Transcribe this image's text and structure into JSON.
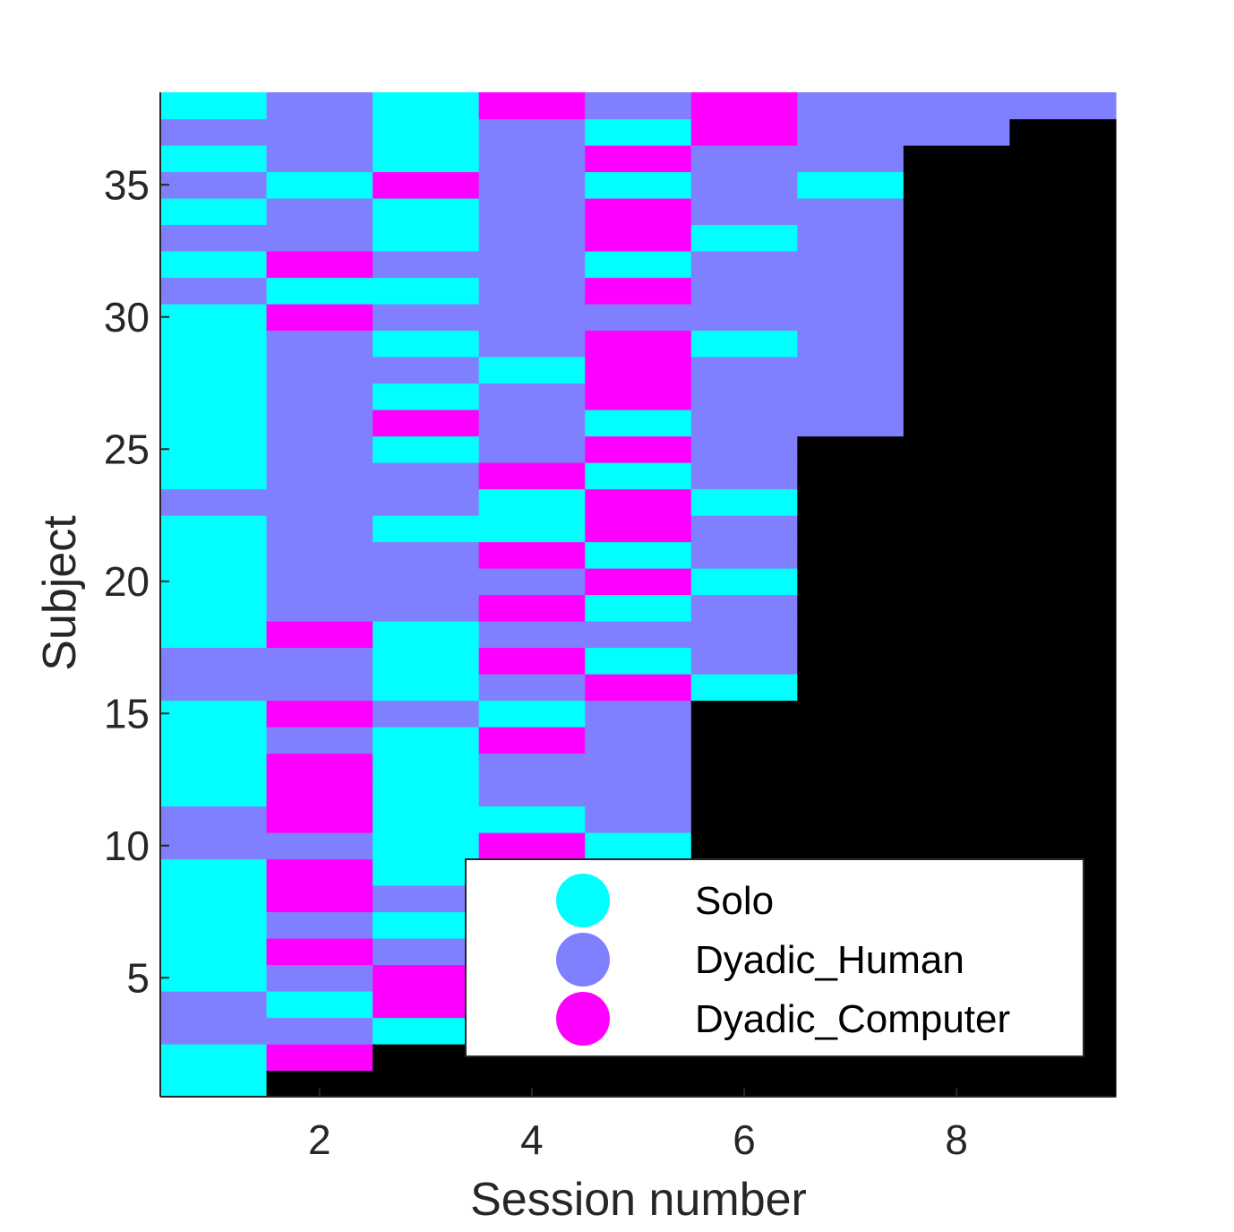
{
  "chart_data": {
    "type": "heatmap",
    "xlabel": "Session number",
    "ylabel": "Subject",
    "x_range": [
      0.5,
      9.5
    ],
    "y_range": [
      0.5,
      38.5
    ],
    "x_ticks": [
      2,
      4,
      6,
      8
    ],
    "y_ticks": [
      5,
      10,
      15,
      20,
      25,
      30,
      35
    ],
    "colors": {
      "0": "#000000",
      "1": "#00FFFF",
      "2": "#8080FF",
      "3": "#FF00FF"
    },
    "legend": {
      "position": "bottom-right",
      "entries": [
        {
          "label": "Solo",
          "code": 1
        },
        {
          "label": "Dyadic_Human",
          "code": 2
        },
        {
          "label": "Dyadic_Computer",
          "code": 3
        }
      ]
    },
    "value_legend": "0 = no session, 1 = Solo, 2 = Dyadic_Human, 3 = Dyadic_Computer",
    "subjects": [
      1,
      2,
      3,
      4,
      5,
      6,
      7,
      8,
      9,
      10,
      11,
      12,
      13,
      14,
      15,
      16,
      17,
      18,
      19,
      20,
      21,
      22,
      23,
      24,
      25,
      26,
      27,
      28,
      29,
      30,
      31,
      32,
      33,
      34,
      35,
      36,
      37,
      38
    ],
    "sessions": [
      1,
      2,
      3,
      4,
      5,
      6,
      7,
      8,
      9
    ],
    "matrix": [
      [
        1,
        0,
        0,
        0,
        0,
        0,
        0,
        0,
        0
      ],
      [
        1,
        3,
        0,
        0,
        0,
        0,
        0,
        0,
        0
      ],
      [
        2,
        2,
        1,
        0,
        0,
        0,
        0,
        0,
        0
      ],
      [
        2,
        1,
        3,
        0,
        0,
        0,
        0,
        0,
        0
      ],
      [
        1,
        2,
        3,
        0,
        0,
        0,
        0,
        0,
        0
      ],
      [
        1,
        3,
        2,
        0,
        0,
        0,
        0,
        0,
        0
      ],
      [
        1,
        2,
        1,
        0,
        0,
        0,
        0,
        0,
        0
      ],
      [
        1,
        3,
        2,
        0,
        0,
        0,
        0,
        0,
        0
      ],
      [
        1,
        3,
        1,
        0,
        0,
        0,
        0,
        0,
        0
      ],
      [
        2,
        2,
        1,
        3,
        1,
        0,
        0,
        0,
        0
      ],
      [
        2,
        3,
        1,
        1,
        2,
        0,
        0,
        0,
        0
      ],
      [
        1,
        3,
        1,
        2,
        2,
        0,
        0,
        0,
        0
      ],
      [
        1,
        3,
        1,
        2,
        2,
        0,
        0,
        0,
        0
      ],
      [
        1,
        2,
        1,
        3,
        2,
        0,
        0,
        0,
        0
      ],
      [
        1,
        3,
        2,
        1,
        2,
        0,
        0,
        0,
        0
      ],
      [
        2,
        2,
        1,
        2,
        3,
        1,
        0,
        0,
        0
      ],
      [
        2,
        2,
        1,
        3,
        1,
        2,
        0,
        0,
        0
      ],
      [
        1,
        3,
        1,
        2,
        2,
        2,
        0,
        0,
        0
      ],
      [
        1,
        2,
        2,
        3,
        1,
        2,
        0,
        0,
        0
      ],
      [
        1,
        2,
        2,
        2,
        3,
        1,
        0,
        0,
        0
      ],
      [
        1,
        2,
        2,
        3,
        1,
        2,
        0,
        0,
        0
      ],
      [
        1,
        2,
        1,
        1,
        3,
        2,
        0,
        0,
        0
      ],
      [
        2,
        2,
        2,
        1,
        3,
        1,
        0,
        0,
        0
      ],
      [
        1,
        2,
        2,
        3,
        1,
        2,
        0,
        0,
        0
      ],
      [
        1,
        2,
        1,
        2,
        3,
        2,
        0,
        0,
        0
      ],
      [
        1,
        2,
        3,
        2,
        1,
        2,
        2,
        0,
        0
      ],
      [
        1,
        2,
        1,
        2,
        3,
        2,
        2,
        0,
        0
      ],
      [
        1,
        2,
        2,
        1,
        3,
        2,
        2,
        0,
        0
      ],
      [
        1,
        2,
        1,
        2,
        3,
        1,
        2,
        0,
        0
      ],
      [
        1,
        3,
        2,
        2,
        2,
        2,
        2,
        0,
        0
      ],
      [
        2,
        1,
        1,
        2,
        3,
        2,
        2,
        0,
        0
      ],
      [
        1,
        3,
        2,
        2,
        1,
        2,
        2,
        0,
        0
      ],
      [
        2,
        2,
        1,
        2,
        3,
        1,
        2,
        0,
        0
      ],
      [
        1,
        2,
        1,
        2,
        3,
        2,
        2,
        0,
        0
      ],
      [
        2,
        1,
        3,
        2,
        1,
        2,
        1,
        0,
        0
      ],
      [
        1,
        2,
        1,
        2,
        3,
        2,
        2,
        0,
        0
      ],
      [
        2,
        2,
        1,
        2,
        1,
        3,
        2,
        2,
        0
      ],
      [
        1,
        2,
        1,
        3,
        2,
        3,
        2,
        2,
        2
      ]
    ]
  }
}
